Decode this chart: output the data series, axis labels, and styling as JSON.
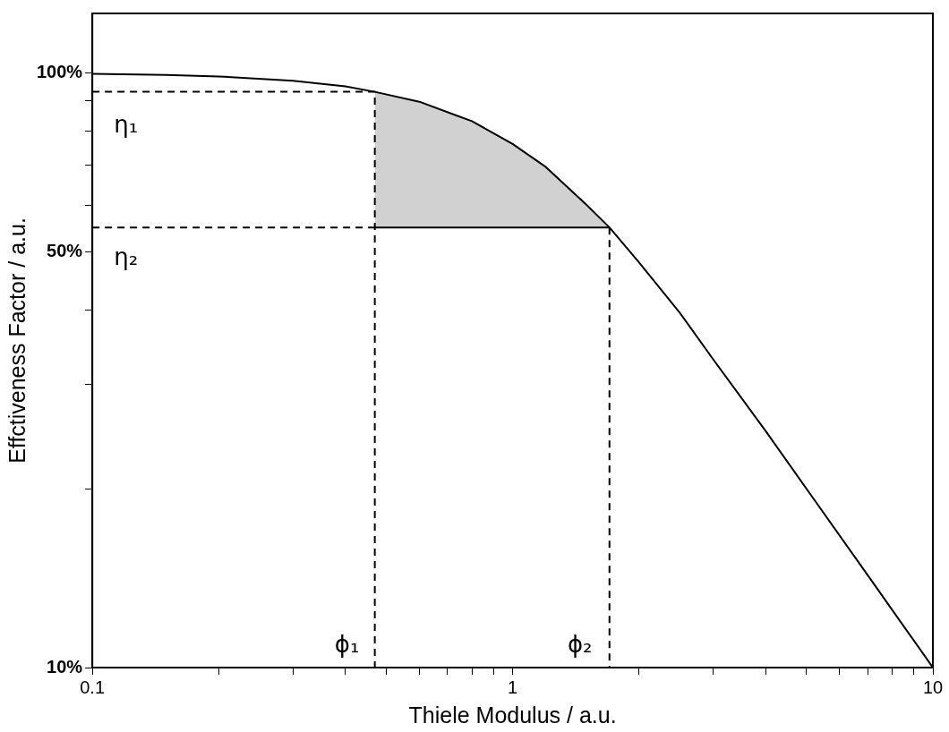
{
  "chart_data": {
    "type": "line",
    "xlabel": "Thiele Modulus / a.u.",
    "ylabel": "Effctiveness Factor / a.u.",
    "log": "xy",
    "xlim": [
      0.1,
      10
    ],
    "ylim": [
      10,
      126
    ],
    "xticks": [
      0.1,
      {
        "value": 0.2,
        "label": null
      },
      {
        "value": 0.3,
        "label": null
      },
      {
        "value": 0.4,
        "label": null
      },
      {
        "value": 0.5,
        "label": null
      },
      {
        "value": 0.6,
        "label": null
      },
      {
        "value": 0.7,
        "label": null
      },
      {
        "value": 0.8,
        "label": null
      },
      {
        "value": 0.9,
        "label": null
      },
      1,
      {
        "value": 2,
        "label": null
      },
      {
        "value": 3,
        "label": null
      },
      {
        "value": 4,
        "label": null
      },
      {
        "value": 5,
        "label": null
      },
      {
        "value": 6,
        "label": null
      },
      {
        "value": 7,
        "label": null
      },
      {
        "value": 8,
        "label": null
      },
      {
        "value": 9,
        "label": null
      },
      10
    ],
    "yticks": [
      {
        "value": 10,
        "label": "10%"
      },
      {
        "value": 20,
        "label": null
      },
      {
        "value": 30,
        "label": null
      },
      {
        "value": 40,
        "label": null
      },
      {
        "value": 50,
        "label": "50%"
      },
      {
        "value": 60,
        "label": null
      },
      {
        "value": 70,
        "label": null
      },
      {
        "value": 80,
        "label": null
      },
      {
        "value": 90,
        "label": null
      },
      {
        "value": 100,
        "label": "100%"
      }
    ],
    "grid": false,
    "marker": "none",
    "series": [
      {
        "color": "#000000",
        "line_style": "solid",
        "x": [
          0.1,
          0.15,
          0.2,
          0.3,
          0.4,
          0.47,
          0.6,
          0.8,
          1,
          1.2,
          1.5,
          1.7,
          2,
          2.5,
          3,
          4,
          5,
          7,
          10
        ],
        "values": [
          99.7,
          99.3,
          98.7,
          97.1,
          95,
          93,
          89.5,
          83,
          76,
          69.5,
          60,
          55,
          48,
          39.5,
          33,
          25,
          20,
          14.3,
          10
        ]
      },
      {
        "type": "line",
        "color": "#000000",
        "line_style": "solid",
        "x": [
          0.47,
          0.6,
          0.8,
          1,
          1.2,
          1.5,
          1.7
        ],
        "values": [
          55,
          55,
          55,
          55,
          55,
          55,
          55
        ],
        "lower": [
          55,
          55,
          55,
          55,
          55,
          55,
          55
        ],
        "upper": [
          93,
          89.5,
          83,
          76,
          69.5,
          60,
          55
        ]
      },
      {
        "type": "line",
        "color": "#000000",
        "line_style": "dashed",
        "x": [
          0.1,
          0.47,
          0.47
        ],
        "values": [
          93,
          93,
          10
        ]
      },
      {
        "type": "line",
        "color": "#000000",
        "line_style": "dashed",
        "x": [
          0.1,
          0.47
        ],
        "values": [
          55,
          55
        ]
      },
      {
        "type": "line",
        "color": "#000000",
        "line_style": "dashed",
        "x": [
          1.7,
          1.7
        ],
        "values": [
          55,
          10
        ]
      }
    ],
    "annotations": [
      "η₁",
      "η₂",
      "ϕ₁",
      "ϕ₂"
    ]
  }
}
